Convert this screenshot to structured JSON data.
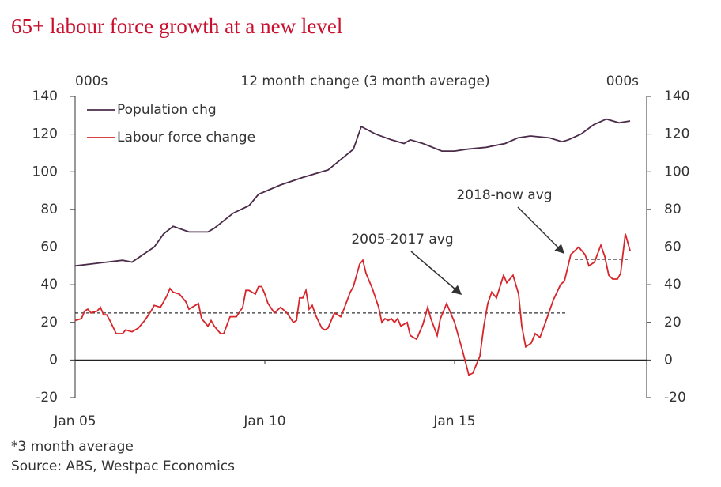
{
  "chart_data": {
    "type": "line",
    "title": "65+ labour force growth at a new level",
    "subtitle": "12  month change (3 month average)",
    "y_label": "000s",
    "y2_label": "000s",
    "notes": [
      "*3 month average",
      "Source: ABS, Westpac Economics"
    ],
    "xlim": [
      0,
      180.75
    ],
    "xticks": [
      {
        "value": 0,
        "label": "Jan 05"
      },
      {
        "value": 60,
        "label": "Jan 10"
      },
      {
        "value": 120,
        "label": "Jan 15"
      }
    ],
    "ylim": [
      -20,
      140
    ],
    "yticks": [
      -20,
      0,
      20,
      40,
      60,
      80,
      100,
      120,
      140
    ],
    "y2lim": [
      -20,
      140
    ],
    "y2ticks": [
      -20,
      0,
      20,
      40,
      60,
      80,
      100,
      120,
      140
    ],
    "legend": "top-left",
    "series": [
      {
        "name": "Population chg",
        "color": "#4b2b4a",
        "x": [
          0,
          15,
          18,
          25,
          28,
          31,
          36,
          42,
          44,
          50,
          55,
          58,
          65,
          72,
          78,
          80,
          88,
          90.5,
          95,
          100,
          104,
          106,
          110,
          116,
          120,
          124,
          130,
          136,
          140,
          144,
          150,
          154,
          156,
          160,
          164,
          168,
          172,
          175.5
        ],
        "values": [
          50,
          53,
          52,
          60,
          67,
          71,
          68,
          68,
          70,
          78,
          82,
          88,
          93,
          97,
          100,
          101,
          112,
          124,
          120,
          117,
          115,
          117,
          115,
          111,
          111,
          112,
          113,
          115,
          118,
          119,
          118,
          116,
          117,
          120,
          125,
          128,
          126,
          127
        ]
      },
      {
        "name": "Labour force change",
        "color": "#d7262b",
        "x": [
          0,
          2,
          3,
          4,
          5,
          7,
          8,
          9,
          10,
          11,
          13,
          15,
          16,
          18,
          20,
          22,
          24,
          25,
          27,
          29,
          30,
          31,
          33,
          35,
          36,
          38,
          39,
          40,
          42,
          43,
          44,
          46,
          47,
          49,
          51,
          53,
          54,
          55,
          57,
          58,
          59,
          60,
          61,
          63,
          65,
          67,
          69,
          70,
          71,
          72,
          73,
          74,
          75,
          76,
          78,
          79,
          80,
          82,
          84,
          85,
          87,
          88,
          89,
          90,
          91,
          92,
          94,
          96,
          97,
          98,
          99,
          100,
          101,
          102,
          103,
          105,
          106,
          108,
          110,
          111.5,
          112.5,
          114.5,
          115.5,
          117.5,
          120,
          122.5,
          124.5,
          125.75,
          126.75,
          128,
          129.25,
          130.5,
          131.75,
          133.25,
          135.5,
          136.5,
          138.5,
          140.25,
          141.25,
          142.5,
          144.25,
          145.5,
          147,
          148.75,
          151.25,
          153.5,
          154.75,
          156.75,
          159.25,
          161.25,
          162.5,
          164.25,
          166.25,
          167.5,
          168.75,
          170,
          171.5,
          172.5,
          174,
          175.5
        ],
        "values": [
          21,
          22,
          26,
          27,
          25,
          26,
          28,
          24,
          24,
          21,
          14,
          14,
          16,
          15,
          17,
          21,
          26,
          29,
          28,
          34,
          38,
          36,
          35,
          31,
          27,
          29,
          30,
          22,
          18,
          21,
          18,
          14,
          14,
          23,
          23,
          28,
          37,
          37,
          35,
          39,
          39,
          35,
          30,
          25,
          28,
          25,
          20,
          21,
          33,
          33,
          37,
          27,
          29,
          24,
          17,
          16,
          17,
          25,
          23,
          27,
          36,
          39,
          45,
          51,
          53,
          46,
          38,
          28,
          20,
          22,
          21,
          22,
          20,
          22,
          18,
          20,
          13,
          11,
          19,
          28,
          22,
          13,
          22,
          30,
          20,
          5,
          -8,
          -7,
          -3,
          2,
          18,
          30,
          36,
          33,
          45,
          41,
          45,
          35,
          18,
          7,
          9,
          14,
          12,
          20,
          32,
          40,
          42,
          56,
          60,
          56,
          50,
          52,
          61,
          55,
          45,
          43,
          43,
          46,
          67,
          58
        ]
      }
    ],
    "reference_lines": [
      {
        "label": "2005-2017 avg",
        "value": 25,
        "x": [
          0,
          155.75
        ]
      },
      {
        "label": "2018-now avg",
        "value": 53.5,
        "x": [
          158,
          175.5
        ]
      }
    ]
  }
}
